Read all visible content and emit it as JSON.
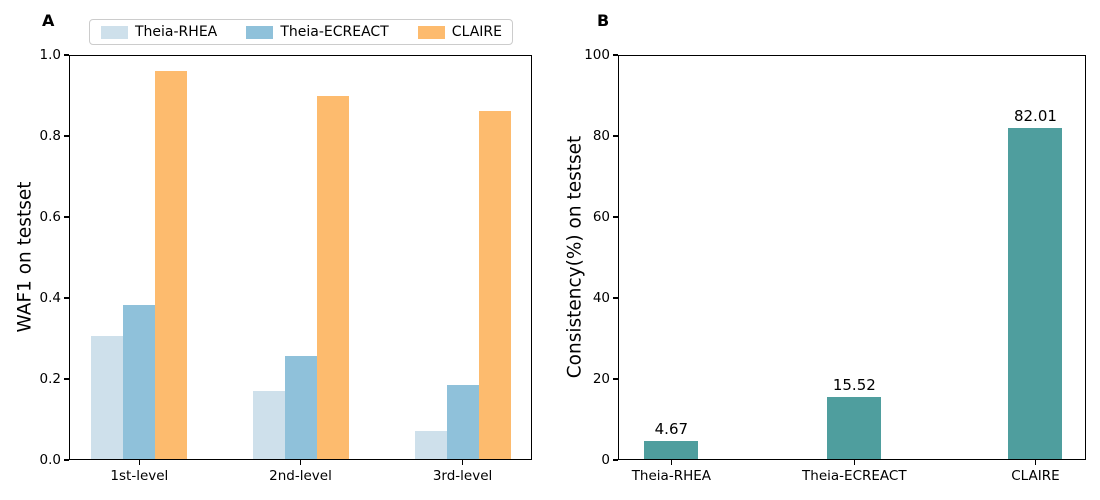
{
  "figure": {
    "background": "#ffffff"
  },
  "chart_data": [
    {
      "type": "bar",
      "panel_label": "A",
      "title": "",
      "xlabel": "",
      "ylabel": "WAF1 on testset",
      "categories": [
        "1st-level",
        "2nd-level",
        "3rd-level"
      ],
      "series": [
        {
          "name": "Theia-RHEA",
          "color": "#CEE0EB",
          "values": [
            0.305,
            0.171,
            0.072
          ]
        },
        {
          "name": "Theia-ECREACT",
          "color": "#8FC1DA",
          "values": [
            0.383,
            0.257,
            0.184
          ]
        },
        {
          "name": "CLAIRE",
          "color": "#FDBB6E",
          "values": [
            0.96,
            0.899,
            0.862
          ]
        }
      ],
      "ylim": [
        0,
        1
      ],
      "yticks": [
        0,
        0.2,
        0.4,
        0.6,
        0.8,
        1.0
      ],
      "ytick_labels": [
        "0.0",
        "0.2",
        "0.4",
        "0.6",
        "0.8",
        "1.0"
      ],
      "grid": false,
      "legend_position": "outside top-left, horizontal"
    },
    {
      "type": "bar",
      "panel_label": "B",
      "title": "",
      "xlabel": "",
      "ylabel": "Consistency(%) on testset",
      "categories": [
        "Theia-RHEA",
        "Theia-ECREACT",
        "CLAIRE"
      ],
      "values": [
        4.67,
        15.52,
        82.01
      ],
      "data_labels": [
        "4.67",
        "15.52",
        "82.01"
      ],
      "bar_color": "#4F9E9E",
      "ylim": [
        0,
        100
      ],
      "yticks": [
        0,
        20,
        40,
        60,
        80,
        100
      ],
      "ytick_labels": [
        "0",
        "20",
        "40",
        "60",
        "80",
        "100"
      ],
      "grid": false,
      "legend_position": "none"
    }
  ]
}
